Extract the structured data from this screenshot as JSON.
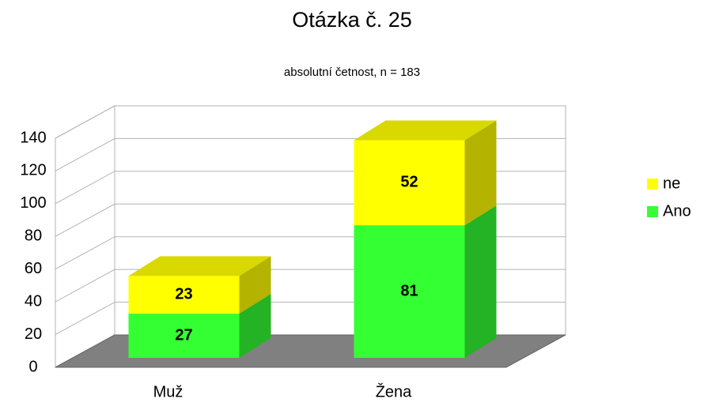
{
  "chart_data": {
    "type": "bar",
    "stacked": true,
    "title": "Otázka č. 25",
    "subtitle": "absolutní četnost, n = 183",
    "categories": [
      "Muž",
      "Žena"
    ],
    "series": [
      {
        "name": "Ano",
        "color": "#33ff33",
        "values": [
          27,
          81
        ]
      },
      {
        "name": "ne",
        "color": "#ffff00",
        "values": [
          23,
          52
        ]
      }
    ],
    "ylim": [
      0,
      140
    ],
    "yticks": [
      0,
      20,
      40,
      60,
      80,
      100,
      120,
      140
    ],
    "grid": true,
    "legend": "right"
  }
}
